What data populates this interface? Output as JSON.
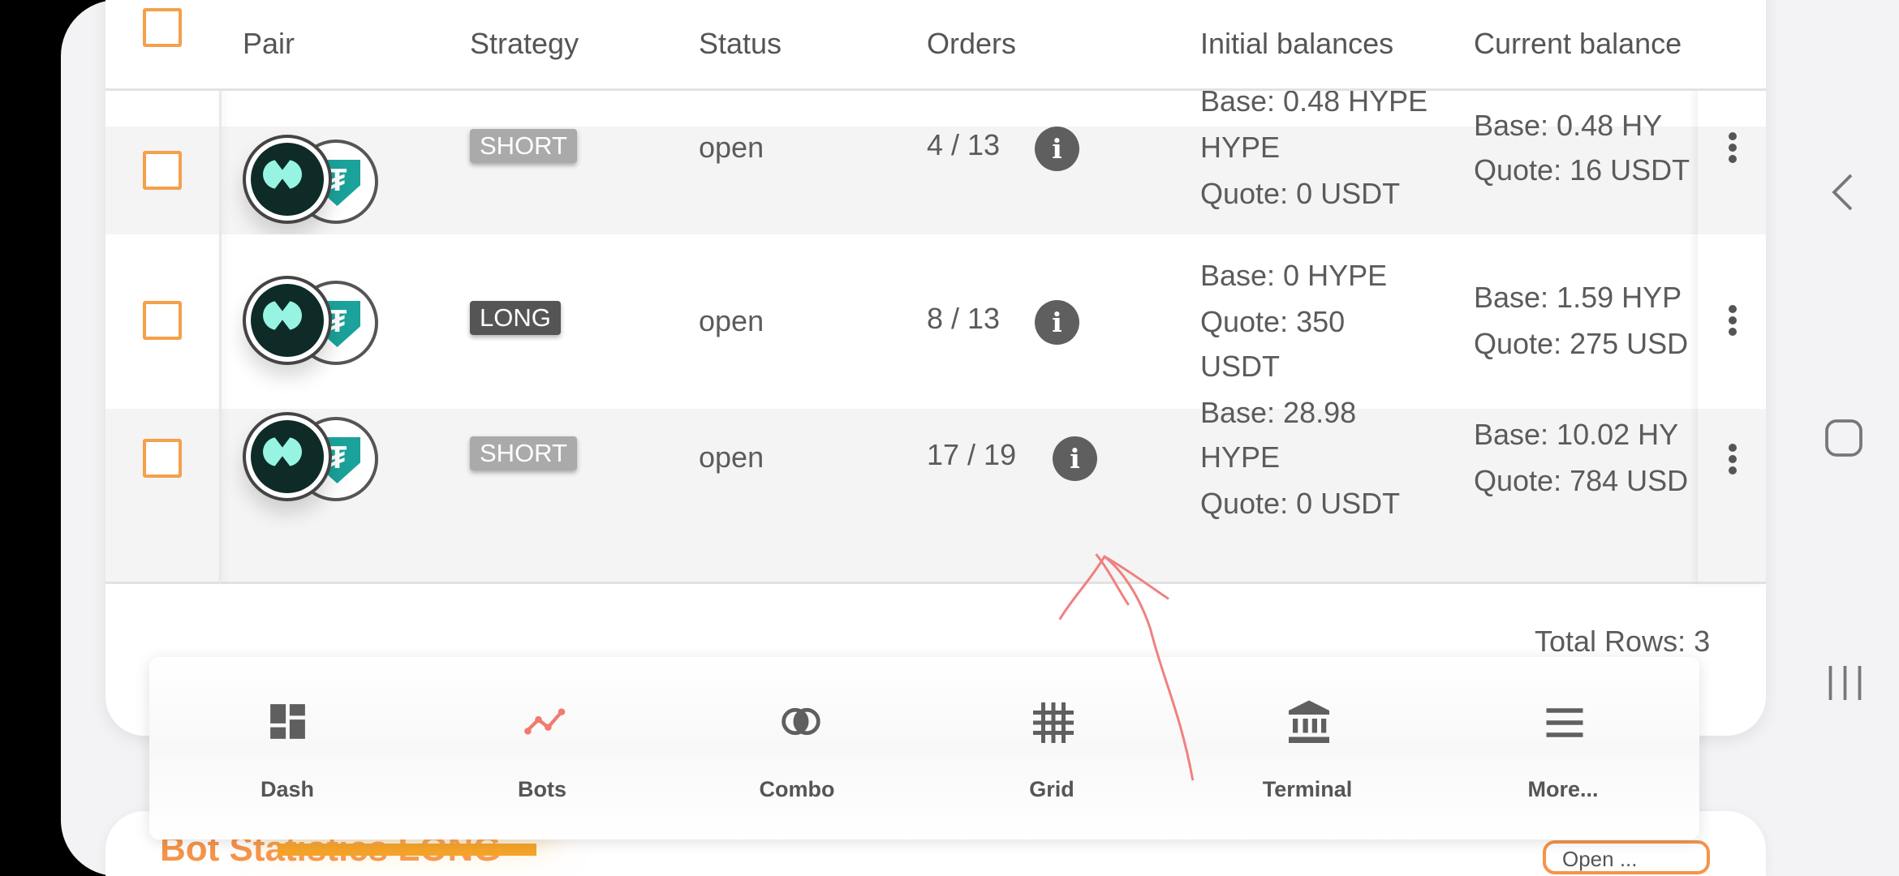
{
  "table": {
    "headers": [
      "Pair",
      "Strategy",
      "Status",
      "Orders",
      "Initial balances",
      "Current balance"
    ],
    "rows": [
      {
        "strategy": "SHORT",
        "status": "open",
        "orders": "4 / 13",
        "initial": [
          "Base: 0.48 HYPE",
          "HYPE",
          "Quote: 0 USDT"
        ],
        "current": [
          "Base: 0.48 HY",
          "Quote: 16 USDT"
        ]
      },
      {
        "strategy": "LONG",
        "status": "open",
        "orders": "8 / 13",
        "initial": [
          "Base: 0 HYPE",
          "Quote: 350",
          "USDT"
        ],
        "current": [
          "Base: 1.59 HYP",
          "Quote: 275 USD"
        ]
      },
      {
        "strategy": "SHORT",
        "status": "open",
        "orders": "17 / 19",
        "initial": [
          "Base: 28.98",
          "HYPE",
          "Quote: 0 USDT"
        ],
        "current": [
          "Base: 10.02 HY",
          "Quote: 784 USD"
        ]
      }
    ],
    "total_rows": "Total Rows: 3",
    "colors": {
      "short": "#aaaaaa",
      "long": "#555555",
      "checkbox": "#f5a04a"
    }
  },
  "pair": {
    "base_coin": "hyperliquid-logo",
    "quote_coin": "tether-logo"
  },
  "bottom_nav": {
    "items": [
      {
        "label": "Dash",
        "icon": "dashboard-icon"
      },
      {
        "label": "Bots",
        "icon": "bots-chart-icon",
        "active": true
      },
      {
        "label": "Combo",
        "icon": "combo-rings-icon"
      },
      {
        "label": "Grid",
        "icon": "grid-icon"
      },
      {
        "label": "Terminal",
        "icon": "bank-icon"
      },
      {
        "label": "More...",
        "icon": "menu-icon"
      }
    ],
    "accent": "#f5a42a"
  },
  "next_section": {
    "title": "Bot Statistics LONG",
    "button": "Open ..."
  }
}
